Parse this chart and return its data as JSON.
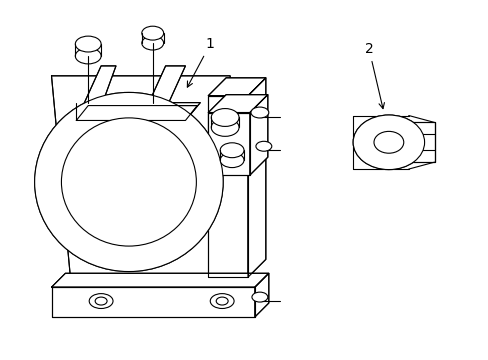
{
  "background_color": "#ffffff",
  "line_color": "#000000",
  "line_width": 0.8,
  "fig_width": 4.89,
  "fig_height": 3.6,
  "dpi": 100,
  "label1": "1",
  "label2": "2"
}
